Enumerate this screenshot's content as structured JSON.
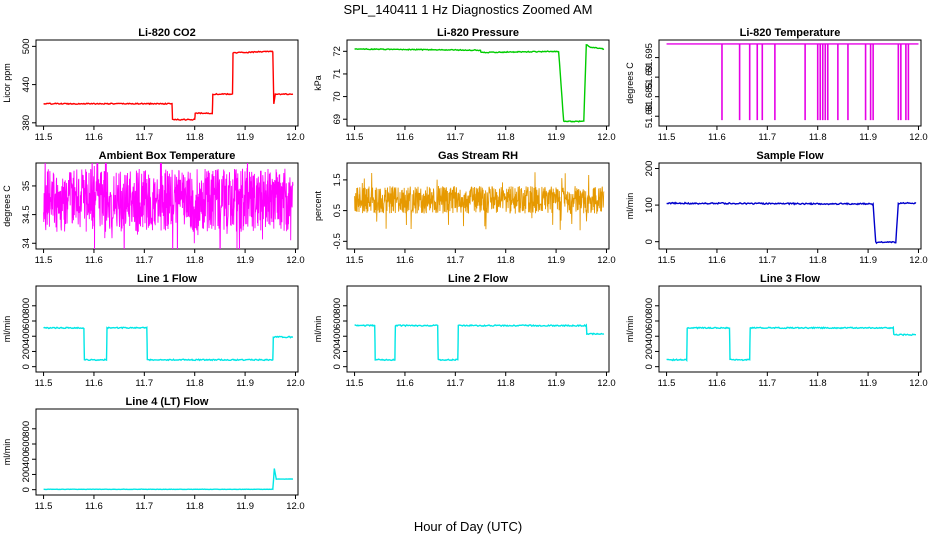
{
  "title": "SPL_140411  1 Hz Diagnostics Zoomed AM",
  "xlabel": "Hour of Day (UTC)",
  "chart_data": [
    {
      "type": "line",
      "title": "Li-820 CO2",
      "ylabel": "Licor ppm",
      "color": "#ff0000",
      "xlim": [
        11.485,
        12.005
      ],
      "ylim": [
        375,
        510
      ],
      "xticks": [
        11.5,
        11.6,
        11.7,
        11.8,
        11.9,
        12.0
      ],
      "yticks": [
        380,
        440,
        500
      ],
      "noise": 0.8,
      "x": [
        11.5,
        11.755,
        11.756,
        11.8,
        11.801,
        11.835,
        11.836,
        11.875,
        11.876,
        11.955,
        11.957,
        11.96,
        11.995
      ],
      "y": [
        410,
        410,
        385,
        385,
        395,
        395,
        425,
        425,
        490,
        492,
        410,
        425,
        425
      ]
    },
    {
      "type": "line",
      "title": "Li-820 Pressure",
      "ylabel": "kPa",
      "color": "#00cc00",
      "xlim": [
        11.485,
        12.005
      ],
      "ylim": [
        68.7,
        72.5
      ],
      "xticks": [
        11.5,
        11.6,
        11.7,
        11.8,
        11.9,
        12.0
      ],
      "yticks": [
        69,
        70,
        71,
        72
      ],
      "noise": 0.02,
      "x": [
        11.5,
        11.75,
        11.751,
        11.905,
        11.91,
        11.915,
        11.955,
        11.96,
        11.965,
        11.995
      ],
      "y": [
        72.1,
        72.05,
        71.95,
        72.0,
        70.5,
        68.9,
        68.9,
        72.3,
        72.2,
        72.1
      ]
    },
    {
      "type": "line",
      "title": "Li-820 Temperature",
      "ylabel": "degrees C",
      "color": "#e600e6",
      "xlim": [
        11.485,
        12.005
      ],
      "ylim": [
        51.6775,
        51.6995
      ],
      "xticks": [
        11.5,
        11.6,
        11.7,
        11.8,
        11.9,
        12.0
      ],
      "yticks": [
        51.68,
        51.685,
        51.69,
        51.695
      ],
      "base": 51.6985,
      "dips": [
        11.61,
        11.645,
        11.665,
        11.68,
        11.69,
        11.715,
        11.775,
        11.8,
        11.805,
        11.81,
        11.815,
        11.82,
        11.84,
        11.86,
        11.895,
        11.905,
        11.91,
        11.96,
        11.965,
        11.975,
        11.98
      ],
      "dip_value": 51.679
    },
    {
      "type": "line",
      "title": "Ambient Box Temperature",
      "ylabel": "degrees C",
      "color": "#ff00ff",
      "xlim": [
        11.485,
        12.005
      ],
      "ylim": [
        33.9,
        35.4
      ],
      "xticks": [
        11.5,
        11.6,
        11.7,
        11.8,
        11.9,
        12.0
      ],
      "yticks": [
        34.0,
        34.5,
        35.0
      ],
      "band": [
        34.2,
        35.3
      ]
    },
    {
      "type": "line",
      "title": "Gas Stream RH",
      "ylabel": "percent",
      "color": "#e69900",
      "xlim": [
        11.485,
        12.005
      ],
      "ylim": [
        -0.75,
        2.05
      ],
      "xticks": [
        11.5,
        11.6,
        11.7,
        11.8,
        11.9,
        12.0
      ],
      "yticks": [
        -0.5,
        0.5,
        1.5
      ],
      "band": [
        0.4,
        1.3
      ]
    },
    {
      "type": "line",
      "title": "Sample Flow",
      "ylabel": "ml/min",
      "color": "#0000cc",
      "xlim": [
        11.485,
        12.005
      ],
      "ylim": [
        -20,
        215
      ],
      "xticks": [
        11.5,
        11.6,
        11.7,
        11.8,
        11.9,
        12.0
      ],
      "yticks": [
        0,
        100,
        200
      ],
      "noise": 2,
      "x": [
        11.5,
        11.91,
        11.915,
        11.955,
        11.96,
        11.995
      ],
      "y": [
        105,
        103,
        -2,
        -2,
        105,
        105
      ]
    },
    {
      "type": "line",
      "title": "Line 1 Flow",
      "ylabel": "ml/min",
      "color": "#00e6e6",
      "xlim": [
        11.485,
        12.005
      ],
      "ylim": [
        -70,
        1060
      ],
      "xticks": [
        11.5,
        11.6,
        11.7,
        11.8,
        11.9,
        12.0
      ],
      "yticks": [
        0,
        200,
        400,
        600,
        800
      ],
      "noise": 8,
      "x": [
        11.5,
        11.58,
        11.581,
        11.625,
        11.626,
        11.705,
        11.706,
        11.955,
        11.956,
        11.995
      ],
      "y": [
        510,
        510,
        90,
        90,
        510,
        510,
        90,
        90,
        390,
        390
      ]
    },
    {
      "type": "line",
      "title": "Line 2 Flow",
      "ylabel": "ml/min",
      "color": "#00e6e6",
      "xlim": [
        11.485,
        12.005
      ],
      "ylim": [
        -70,
        1060
      ],
      "xticks": [
        11.5,
        11.6,
        11.7,
        11.8,
        11.9,
        12.0
      ],
      "yticks": [
        0,
        200,
        400,
        600,
        800
      ],
      "noise": 8,
      "x": [
        11.5,
        11.54,
        11.541,
        11.58,
        11.581,
        11.665,
        11.666,
        11.705,
        11.706,
        11.96,
        11.961,
        11.995
      ],
      "y": [
        540,
        540,
        90,
        90,
        540,
        540,
        90,
        90,
        540,
        540,
        430,
        430
      ]
    },
    {
      "type": "line",
      "title": "Line 3 Flow",
      "ylabel": "ml/min",
      "color": "#00e6e6",
      "xlim": [
        11.485,
        12.005
      ],
      "ylim": [
        -70,
        1060
      ],
      "xticks": [
        11.5,
        11.6,
        11.7,
        11.8,
        11.9,
        12.0
      ],
      "yticks": [
        0,
        200,
        400,
        600,
        800
      ],
      "noise": 8,
      "x": [
        11.5,
        11.54,
        11.541,
        11.625,
        11.626,
        11.665,
        11.666,
        11.95,
        11.951,
        11.995
      ],
      "y": [
        90,
        90,
        510,
        510,
        90,
        90,
        510,
        510,
        420,
        420
      ]
    },
    {
      "type": "line",
      "title": "Line 4 (LT) Flow",
      "ylabel": "ml/min",
      "color": "#00e6e6",
      "xlim": [
        11.485,
        12.005
      ],
      "ylim": [
        -70,
        1060
      ],
      "xticks": [
        11.5,
        11.6,
        11.7,
        11.8,
        11.9,
        12.0
      ],
      "yticks": [
        0,
        200,
        400,
        600,
        800
      ],
      "noise": 2,
      "x": [
        11.5,
        11.955,
        11.958,
        11.962,
        11.975,
        11.995
      ],
      "y": [
        5,
        5,
        280,
        140,
        140,
        140
      ]
    }
  ]
}
